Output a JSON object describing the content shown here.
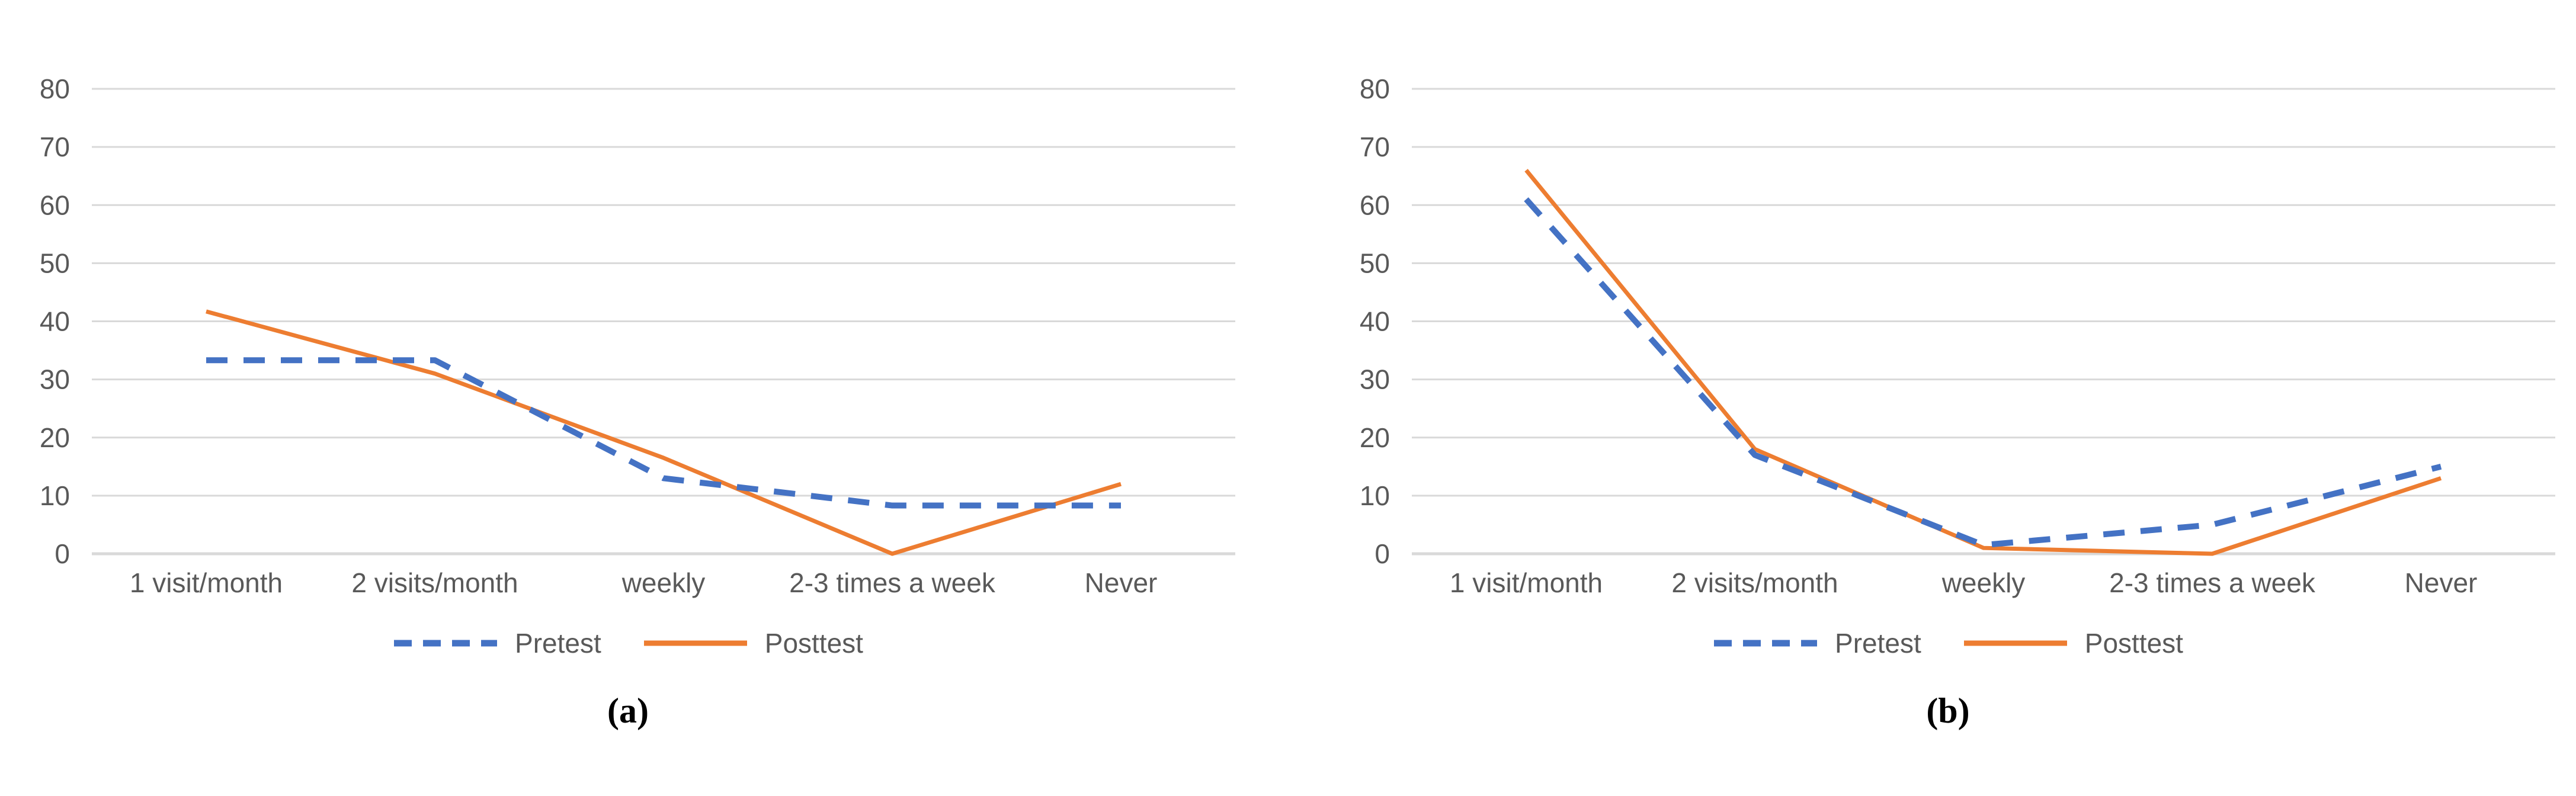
{
  "figure": {
    "background": "#ffffff"
  },
  "chart_data": [
    {
      "type": "line",
      "caption": "(a)",
      "categories": [
        "1 visit/month",
        "2 visits/month",
        "weekly",
        "2-3 times a week",
        "Never"
      ],
      "series": [
        {
          "name": "Posttest",
          "style": "solid",
          "color": "#ED7D31",
          "values": [
            41.7,
            31,
            16.5,
            0,
            12
          ]
        },
        {
          "name": "Pretest",
          "style": "dashed",
          "color": "#4472C4",
          "values": [
            33.3,
            33.3,
            13,
            8.3,
            8.3
          ]
        }
      ],
      "ylim": [
        0,
        80
      ],
      "yticks": [
        0,
        10,
        20,
        30,
        40,
        50,
        60,
        70,
        80
      ],
      "grid": true,
      "legend_position": "bottom",
      "colors": {
        "gridline": "#D9D9D9",
        "axis_line": "#D9D9D9",
        "axis_text": "#595959"
      }
    },
    {
      "type": "line",
      "caption": "(b)",
      "categories": [
        "1 visit/month",
        "2 visits/month",
        "weekly",
        "2-3 times a week",
        "Never"
      ],
      "series": [
        {
          "name": "Posttest",
          "style": "solid",
          "color": "#ED7D31",
          "values": [
            66,
            18,
            1,
            0,
            13
          ]
        },
        {
          "name": "Pretest",
          "style": "dashed",
          "color": "#4472C4",
          "values": [
            61,
            17,
            1.5,
            5,
            15
          ]
        }
      ],
      "ylim": [
        0,
        80
      ],
      "yticks": [
        0,
        10,
        20,
        30,
        40,
        50,
        60,
        70,
        80
      ],
      "grid": true,
      "legend_position": "bottom",
      "colors": {
        "gridline": "#D9D9D9",
        "axis_line": "#D9D9D9",
        "axis_text": "#595959"
      }
    }
  ],
  "legend": {
    "pretest_label": "Pretest",
    "posttest_label": "Posttest"
  }
}
